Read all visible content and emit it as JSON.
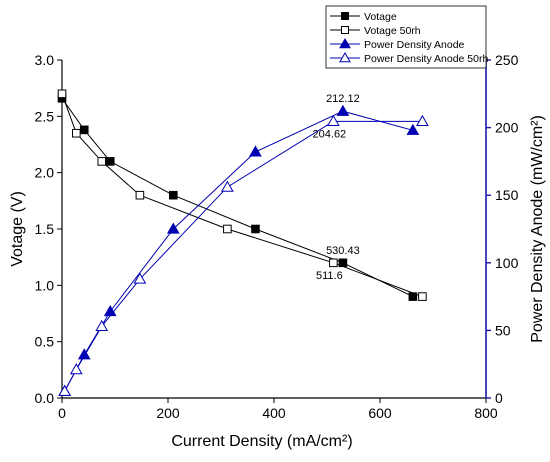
{
  "chart_data": {
    "type": "line",
    "xlabel": "Current Density (mA/cm²)",
    "ylabel_left": "Votage (V)",
    "ylabel_right": "Power Density Anode (mW/cm²)",
    "xlim": [
      0,
      800
    ],
    "ylim_left": [
      0,
      3.0
    ],
    "ylim_right": [
      0,
      250
    ],
    "x_ticks": [
      "0",
      "200",
      "400",
      "600",
      "800"
    ],
    "y_left_ticks": [
      "0.0",
      "0.5",
      "1.0",
      "1.5",
      "2.0",
      "2.5",
      "3.0"
    ],
    "y_right_ticks": [
      "0",
      "50",
      "100",
      "150",
      "200",
      "250"
    ],
    "grid": false,
    "legend_position": "top-right",
    "series": [
      {
        "name": "Votage",
        "axis": "left",
        "marker": "filled-square",
        "color": "#000000",
        "x": [
          0,
          42,
          91,
          210,
          365,
          530,
          662
        ],
        "y": [
          2.66,
          2.38,
          2.1,
          1.8,
          1.5,
          1.2,
          0.9
        ]
      },
      {
        "name": "Votage 50rh",
        "axis": "left",
        "marker": "open-square",
        "color": "#000000",
        "x": [
          0,
          27,
          75,
          147,
          312,
          512,
          680
        ],
        "y": [
          2.7,
          2.35,
          2.1,
          1.8,
          1.5,
          1.2,
          0.9
        ]
      },
      {
        "name": "Power Density Anode",
        "axis": "right",
        "marker": "filled-triangle",
        "color": "#0000b3",
        "x": [
          5,
          42,
          91,
          210,
          365,
          530,
          662
        ],
        "y": [
          5,
          32,
          64,
          125,
          182,
          212.12,
          198
        ]
      },
      {
        "name": "Power Density Anode 50rh",
        "axis": "right",
        "marker": "open-triangle",
        "color": "#0000b3",
        "x": [
          5,
          27,
          75,
          147,
          312,
          512,
          680
        ],
        "y": [
          5,
          21,
          53,
          88,
          156,
          204.62,
          204.62
        ]
      }
    ],
    "annotations": [
      {
        "text": "212.12",
        "x": 530,
        "y": 212.12,
        "axis": "right",
        "place": "above"
      },
      {
        "text": "204.62",
        "x": 512,
        "y": 204.62,
        "axis": "right",
        "place": "below"
      },
      {
        "text": "530.43",
        "x": 530,
        "y": 1.2,
        "axis": "left",
        "place": "above"
      },
      {
        "text": "511.6",
        "x": 512,
        "y": 1.2,
        "axis": "left",
        "place": "below"
      }
    ]
  }
}
